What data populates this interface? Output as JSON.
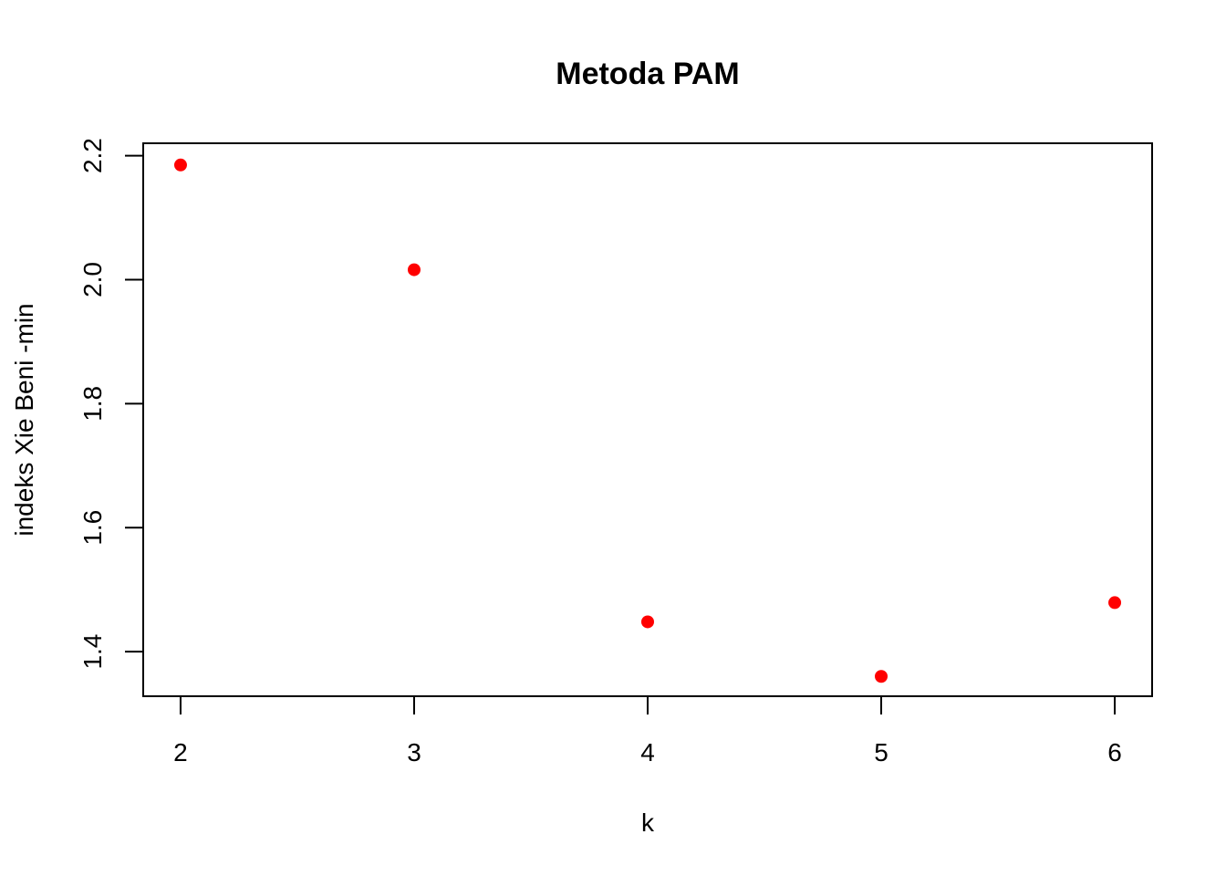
{
  "chart_data": {
    "type": "scatter",
    "title": "Metoda PAM",
    "xlabel": "k",
    "ylabel": "indeks Xie Beni -min",
    "x": [
      2,
      3,
      4,
      5,
      6
    ],
    "y": [
      2.185,
      2.016,
      1.448,
      1.36,
      1.479
    ],
    "xlim": [
      1.84,
      6.16
    ],
    "ylim": [
      1.328,
      2.22
    ],
    "xticks": [
      2,
      3,
      4,
      5,
      6
    ],
    "yticks": [
      1.4,
      1.6,
      1.8,
      2.0,
      2.2
    ],
    "xtick_labels": [
      "2",
      "3",
      "4",
      "5",
      "6"
    ],
    "ytick_labels": [
      "1.4",
      "1.6",
      "1.8",
      "2.0",
      "2.2"
    ],
    "point_color": "#ff0000",
    "grid": false,
    "legend": "none"
  }
}
